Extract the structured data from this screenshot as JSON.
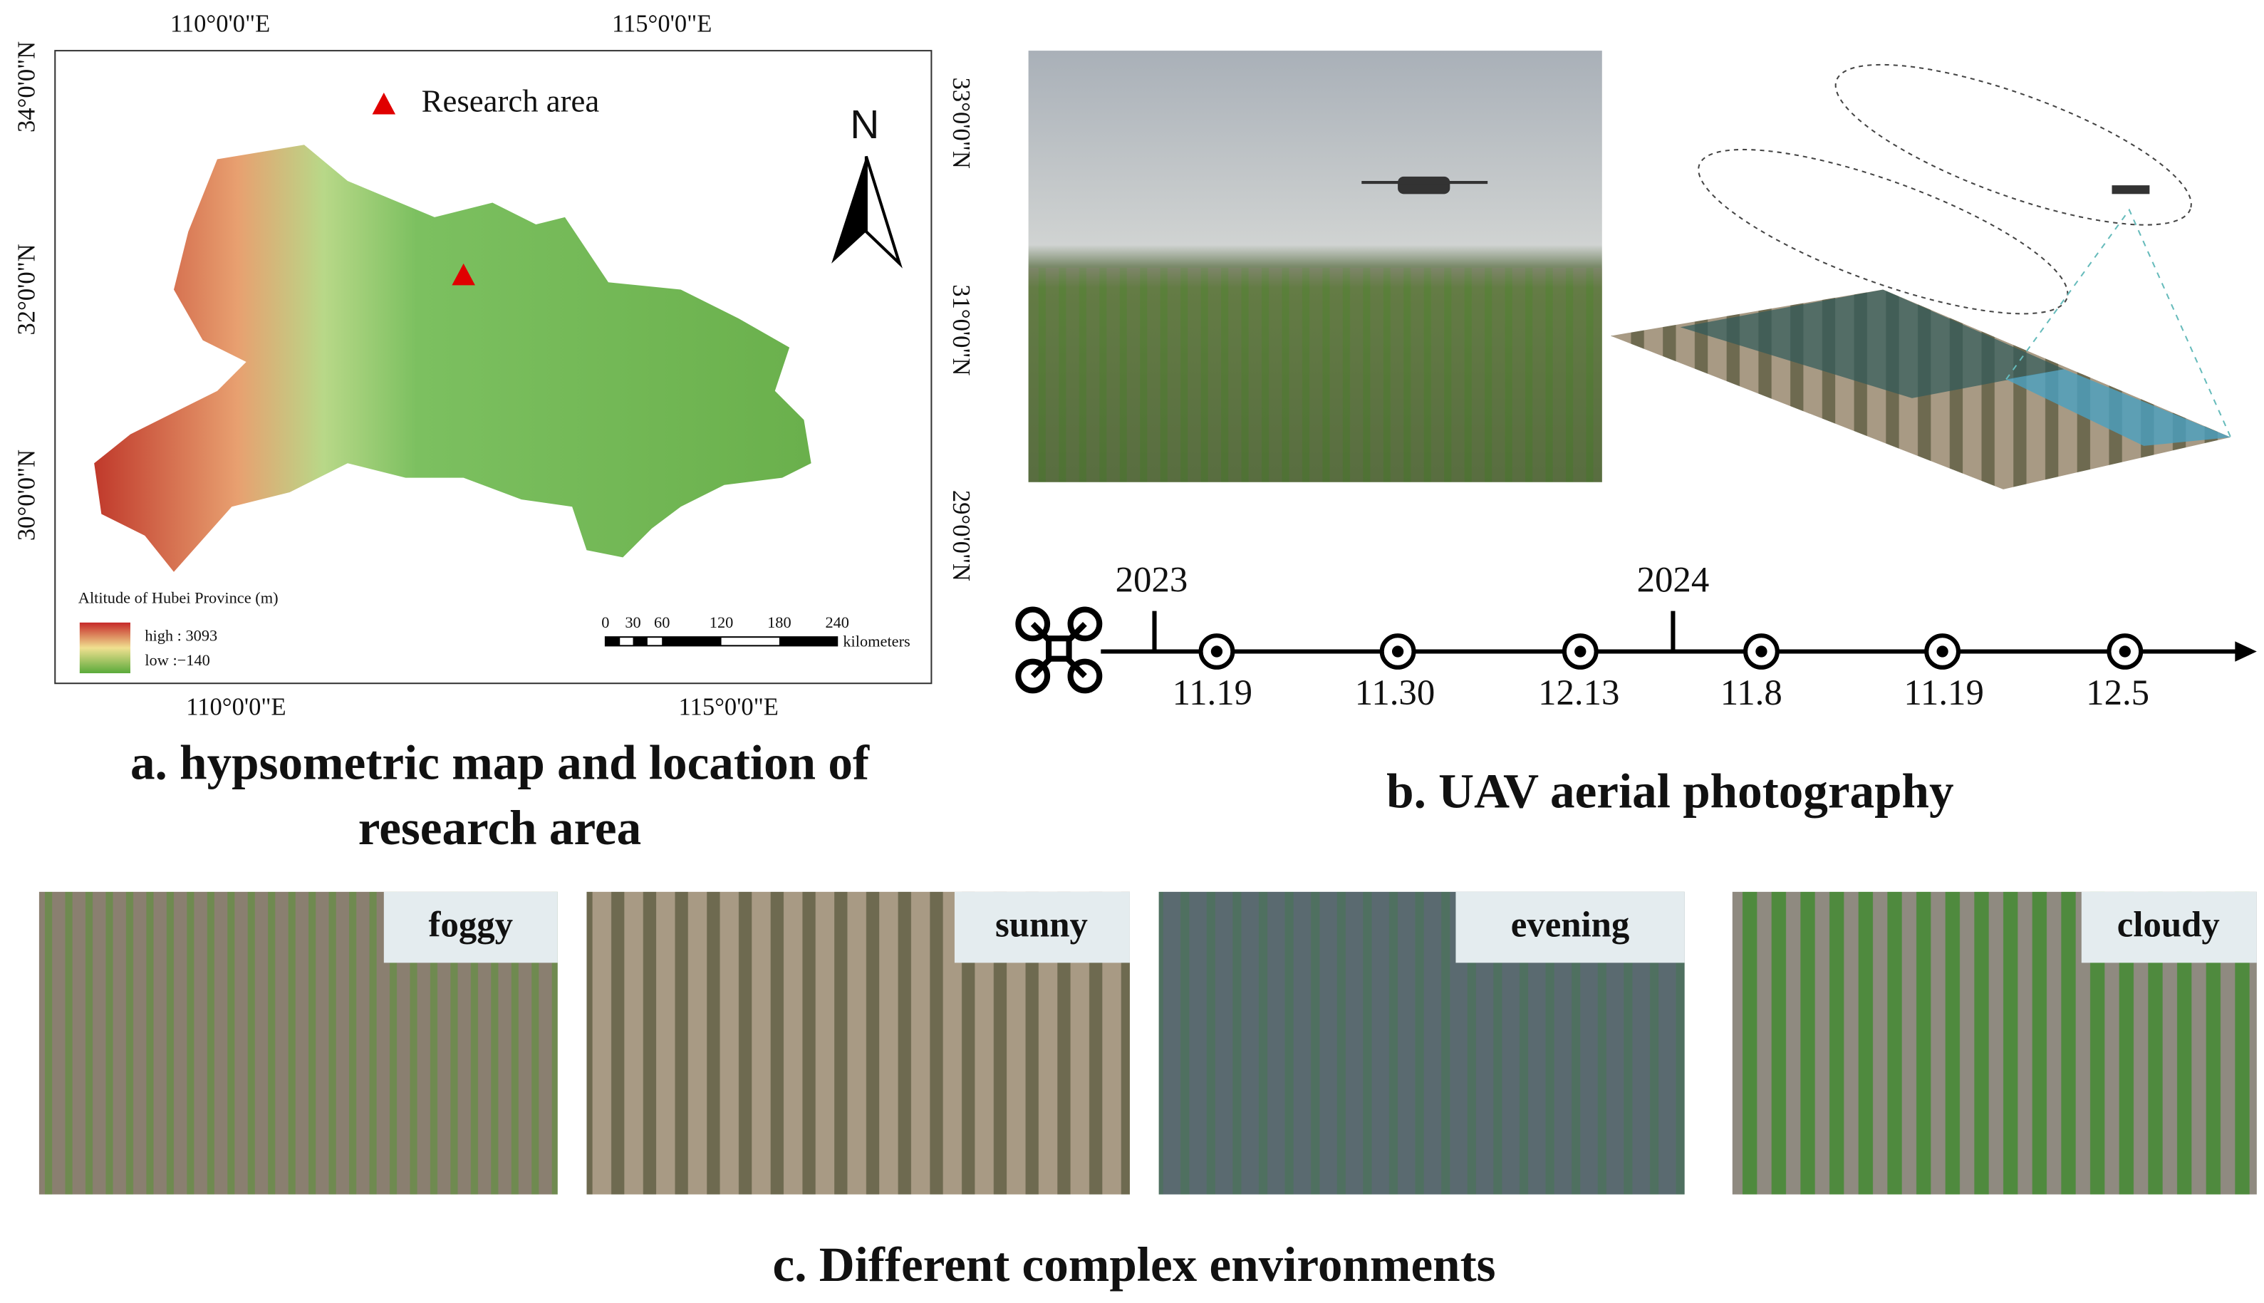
{
  "panel_a": {
    "top_ticks": [
      "110°0'0\"E",
      "115°0'0\"E"
    ],
    "bottom_ticks": [
      "110°0'0\"E",
      "115°0'0\"E"
    ],
    "left_ticks": [
      "34°0'0\"N",
      "32°0'0\"N",
      "30°0'0\"N"
    ],
    "right_ticks": [
      "33°0'0\"N",
      "31°0'0\"N",
      "29°0'0\"N"
    ],
    "marker_legend": "Research area",
    "north": "N",
    "legend_title": "Altitude of Hubei Province (m)",
    "legend_high": "high : 3093",
    "legend_low": "low :−140",
    "scale_ticks": [
      "0",
      "30",
      "60",
      "120",
      "180",
      "240"
    ],
    "scale_unit": "kilometers",
    "caption": "a. hypsometric map and location of research area"
  },
  "panel_b": {
    "years": [
      "2023",
      "2024"
    ],
    "dates": [
      "11.19",
      "11.30",
      "12.13",
      "11.8",
      "11.19",
      "12.5"
    ],
    "caption": "b. UAV aerial photography"
  },
  "panel_c": {
    "labels": [
      "foggy",
      "sunny",
      "evening",
      "cloudy"
    ],
    "caption": "c. Different complex environments"
  }
}
